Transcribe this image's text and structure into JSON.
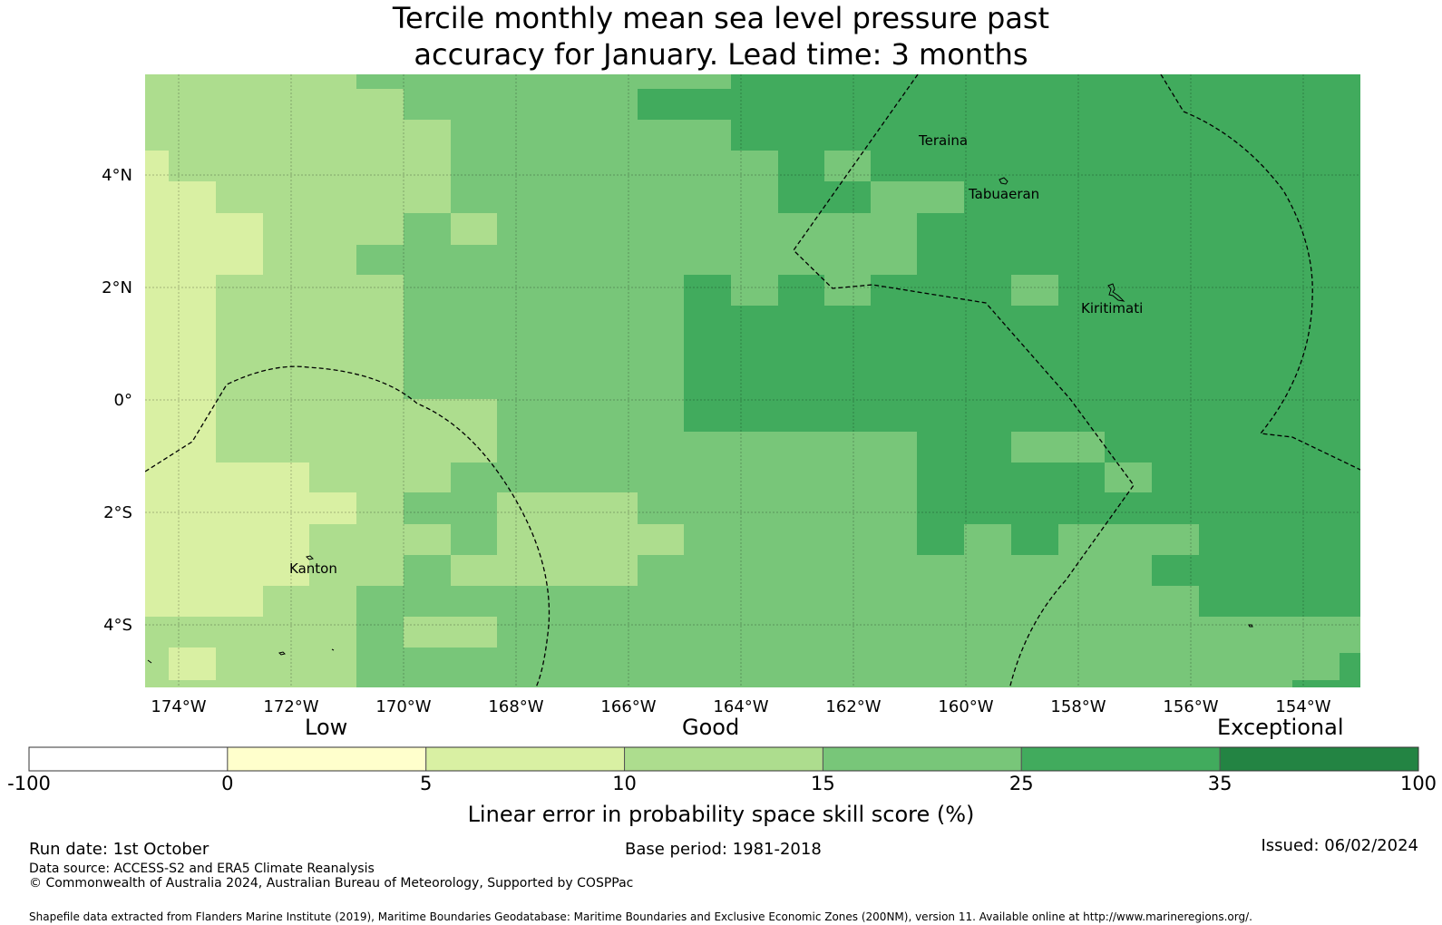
{
  "title": {
    "line1": "Tercile monthly mean sea level pressure past",
    "line2": "accuracy for January. Lead time: 3 months"
  },
  "map": {
    "lat_labels": [
      "4°N",
      "2°N",
      "0°",
      "2°S",
      "4°S"
    ],
    "lon_labels": [
      "174°W",
      "172°W",
      "170°W",
      "168°W",
      "166°W",
      "164°W",
      "162°W",
      "160°W",
      "158°W",
      "156°W",
      "154°W"
    ],
    "places": {
      "teraina": "Teraina",
      "tabuaeran": "Tabuaeran",
      "kiritimati": "Kiritimati",
      "kanton": "Kanton"
    }
  },
  "legend": {
    "categories": {
      "low": "Low",
      "good": "Good",
      "exceptional": "Exceptional"
    },
    "ticks": [
      "-100",
      "0",
      "5",
      "10",
      "15",
      "25",
      "35",
      "100"
    ],
    "colors": [
      "#ffffff",
      "#ffffcc",
      "#d9f0a3",
      "#addd8e",
      "#78c679",
      "#41ab5d",
      "#238443"
    ],
    "label": "Linear error in probability space skill score (%)"
  },
  "footer": {
    "run_date": "Run date: 1st October",
    "base_period": "Base period: 1981-2018",
    "issued": "Issued: 06/02/2024",
    "data_source": "Data source: ACCESS-S2 and ERA5 Climate Reanalysis",
    "copyright": "© Commonwealth of Australia 2024, Australian Bureau of Meteorology, Supported by COSPPac",
    "shapefile": "Shapefile data extracted from Flanders Marine Institute (2019), Maritime Boundaries Geodatabase: Maritime Boundaries and Exclusive Economic Zones (200NM), version 11. Available online at http://www.marineregions.org/."
  }
}
